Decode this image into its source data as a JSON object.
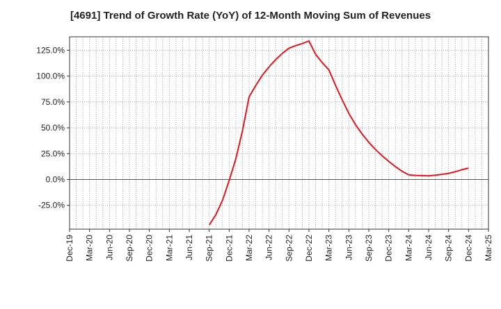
{
  "chart_data": {
    "type": "line",
    "title": "[4691]  Trend of Growth Rate (YoY) of 12-Month Moving Sum of Revenues",
    "xlabel": "",
    "ylabel": "",
    "x_ticks": [
      "Dec-19",
      "Mar-20",
      "Jun-20",
      "Sep-20",
      "Dec-20",
      "Mar-21",
      "Jun-21",
      "Sep-21",
      "Dec-21",
      "Mar-22",
      "Jun-22",
      "Sep-22",
      "Dec-22",
      "Mar-23",
      "Jun-23",
      "Sep-23",
      "Dec-23",
      "Mar-24",
      "Jun-24",
      "Sep-24",
      "Dec-24",
      "Mar-25"
    ],
    "y_ticks": [
      125,
      100,
      75,
      50,
      25,
      0,
      -25
    ],
    "y_tick_labels": [
      "125.0%",
      "100.0%",
      "75.0%",
      "50.0%",
      "25.0%",
      "0.0%",
      "-25.0%"
    ],
    "ylim": [
      -48,
      138
    ],
    "y_unit": "%",
    "grid": true,
    "series": [
      {
        "color": "#e8141b",
        "x": [
          "Sep-21",
          "Oct-21",
          "Nov-21",
          "Dec-21",
          "Jan-22",
          "Feb-22",
          "Mar-22",
          "Apr-22",
          "May-22",
          "Jun-22",
          "Jul-22",
          "Aug-22",
          "Sep-22",
          "Oct-22",
          "Nov-22",
          "Dec-22",
          "Jan-23",
          "Feb-23",
          "Mar-23",
          "Apr-23",
          "May-23",
          "Jun-23",
          "Jul-23",
          "Aug-23",
          "Sep-23",
          "Oct-23",
          "Nov-23",
          "Dec-23",
          "Jan-24",
          "Feb-24",
          "Mar-24",
          "Apr-24",
          "May-24",
          "Jun-24",
          "Jul-24",
          "Aug-24",
          "Sep-24",
          "Oct-24",
          "Nov-24",
          "Dec-24"
        ],
        "values": [
          -44,
          -34,
          -20,
          -1,
          20,
          47,
          80,
          91,
          101,
          109,
          116,
          122,
          127,
          129.5,
          131.5,
          134,
          121,
          113,
          106,
          91,
          77,
          64,
          53,
          44,
          36,
          29,
          23,
          17.5,
          12.5,
          8,
          4.5,
          4,
          3.8,
          3.5,
          4.2,
          5,
          6,
          7.5,
          9.5,
          11
        ]
      }
    ]
  }
}
